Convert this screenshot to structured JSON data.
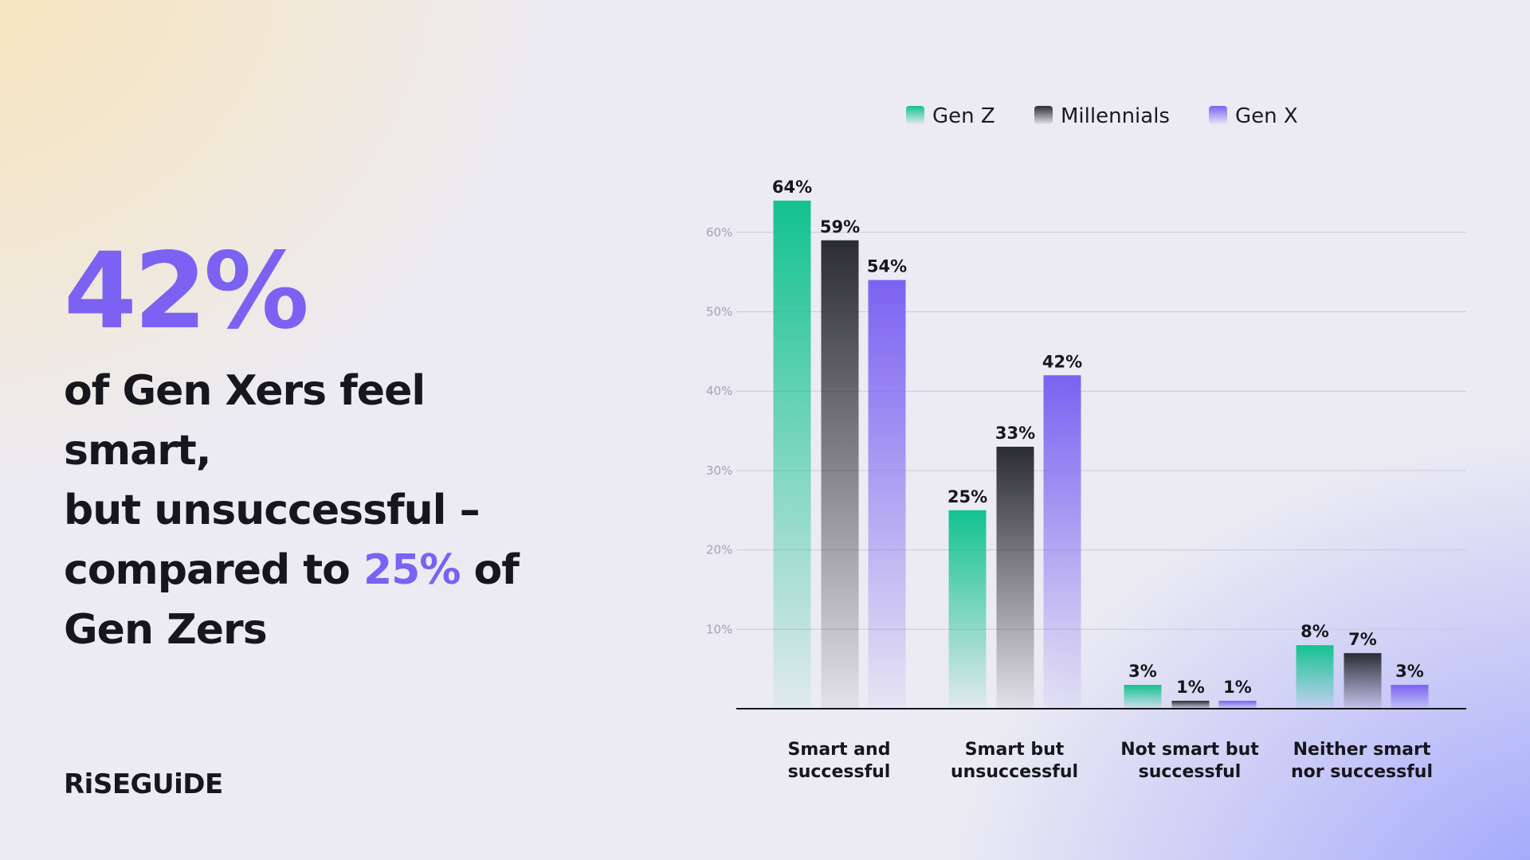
{
  "headline": {
    "big_stat": "42%",
    "line1": "of Gen Xers feel smart,",
    "line2": "but unsuccessful –",
    "line3_pre": "compared to ",
    "line3_accent": "25%",
    "line3_post": " of",
    "line4": "Gen Zers"
  },
  "brand": {
    "logo_text": "RiSEGUiDE"
  },
  "colors": {
    "gen_z": "#13c290",
    "millennials": "#2c2c34",
    "gen_x": "#7b62f2",
    "accent": "#7b62f2"
  },
  "chart_data": {
    "type": "bar",
    "categories": [
      [
        "Smart and",
        "successful"
      ],
      [
        "Smart but",
        "unsuccessful"
      ],
      [
        "Not smart but",
        "successful"
      ],
      [
        "Neither smart",
        "nor successful"
      ]
    ],
    "series": [
      {
        "name": "Gen Z",
        "values": [
          64,
          25,
          3,
          8
        ],
        "labels": [
          "64%",
          "25%",
          "3%",
          "8%"
        ]
      },
      {
        "name": "Millennials",
        "values": [
          59,
          33,
          1,
          7
        ],
        "labels": [
          "59%",
          "33%",
          "1%",
          "7%"
        ]
      },
      {
        "name": "Gen X",
        "values": [
          54,
          42,
          1,
          3
        ],
        "labels": [
          "54%",
          "42%",
          "1%",
          "3%"
        ]
      }
    ],
    "y_ticks": [
      "10%",
      "20%",
      "30%",
      "40%",
      "50%",
      "60%"
    ],
    "y_tick_values": [
      10,
      20,
      30,
      40,
      50,
      60
    ],
    "ylim": [
      0,
      65
    ],
    "grid": true,
    "legend_position": "top-center"
  }
}
